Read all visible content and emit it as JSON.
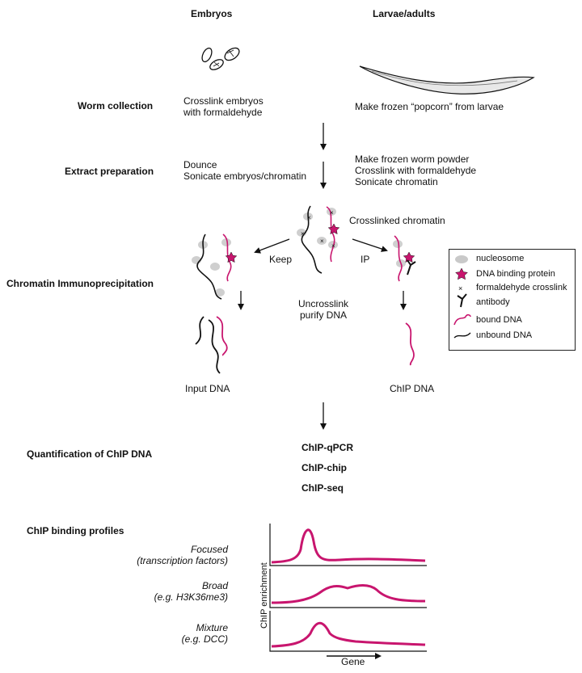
{
  "columns": {
    "embryos": "Embryos",
    "larvae": "Larvae/adults"
  },
  "steps": {
    "worm_collection": {
      "label": "Worm collection",
      "embryo_lines": [
        "Crosslink embryos",
        "with formaldehyde"
      ],
      "larvae_lines": [
        "Make frozen “popcorn” from larvae"
      ]
    },
    "extract_preparation": {
      "label": "Extract preparation",
      "embryo_lines": [
        "Dounce",
        "Sonicate embryos/chromatin"
      ],
      "larvae_lines": [
        "Make frozen worm powder",
        "Crosslink with formaldehyde",
        "Sonicate chromatin"
      ]
    },
    "chip": {
      "label": "Chromatin Immunoprecipitation",
      "crosslinked": "Crosslinked chromatin",
      "keep": "Keep",
      "ip": "IP",
      "uncrosslink_lines": [
        "Uncrosslink",
        "purify DNA"
      ],
      "input_dna": "Input DNA",
      "chip_dna": "ChIP DNA"
    },
    "quantification": {
      "label": "Quantification of ChIP DNA",
      "methods": [
        "ChIP-qPCR",
        "ChIP-chip",
        "ChIP-seq"
      ]
    },
    "profiles": {
      "label": "ChIP binding profiles",
      "rows": [
        {
          "name": "Focused",
          "example": "(transcription factors)"
        },
        {
          "name": "Broad",
          "example": "(e.g. H3K36me3)"
        },
        {
          "name": "Mixture",
          "example": "(e.g. DCC)"
        }
      ],
      "ylabel": "ChIP enrichment",
      "xlabel": "Gene"
    }
  },
  "legend": {
    "items": [
      {
        "icon": "nucleosome-icon",
        "label": "nucleosome"
      },
      {
        "icon": "dna-binding-protein-icon",
        "label": "DNA binding protein"
      },
      {
        "icon": "crosslink-icon",
        "label": "formaldehyde crosslink"
      },
      {
        "icon": "antibody-icon",
        "label": "antibody"
      },
      {
        "icon": "bound-dna-icon",
        "label": "bound DNA"
      },
      {
        "icon": "unbound-dna-icon",
        "label": "unbound DNA"
      }
    ]
  },
  "colors": {
    "bound_dna": "#c8156e",
    "nucleosome": "#c9c9c9",
    "unbound_dna": "#111111"
  }
}
